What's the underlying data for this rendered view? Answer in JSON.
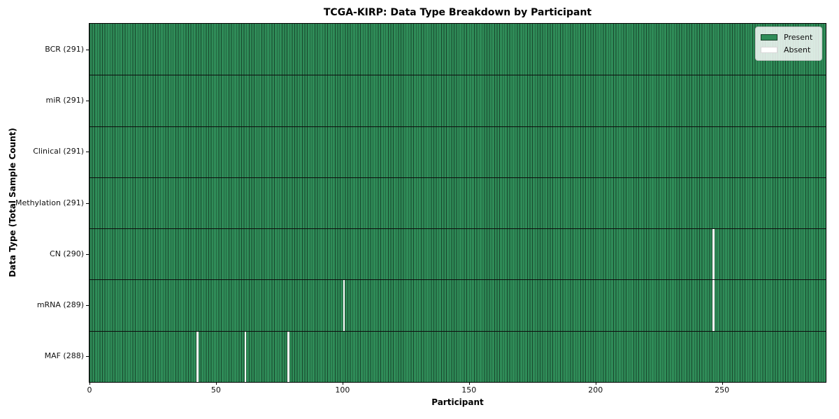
{
  "chart_data": {
    "type": "heatmap",
    "title": "TCGA-KIRP: Data Type Breakdown by Participant",
    "xlabel": "Participant",
    "ylabel": "Data Type (Total Sample Count)",
    "n_participants": 291,
    "xlim": [
      0,
      291
    ],
    "x_ticks": [
      0,
      50,
      100,
      150,
      200,
      250
    ],
    "grid": false,
    "legend_position": "upper right",
    "legend": [
      {
        "label": "Present",
        "color": "#2f8c58"
      },
      {
        "label": "Absent",
        "color": "#ffffff"
      }
    ],
    "rows": [
      {
        "data_type": "BCR",
        "total": 291,
        "label": "BCR (291)",
        "absent_participants": []
      },
      {
        "data_type": "miR",
        "total": 291,
        "label": "miR (291)",
        "absent_participants": []
      },
      {
        "data_type": "Clinical",
        "total": 291,
        "label": "Clinical (291)",
        "absent_participants": []
      },
      {
        "data_type": "Methylation",
        "total": 291,
        "label": "Methylation (291)",
        "absent_participants": []
      },
      {
        "data_type": "CN",
        "total": 290,
        "label": "CN (290)",
        "absent_participants": [
          246
        ]
      },
      {
        "data_type": "mRNA",
        "total": 289,
        "label": "mRNA (289)",
        "absent_participants": [
          100,
          246
        ]
      },
      {
        "data_type": "MAF",
        "total": 288,
        "label": "MAF (288)",
        "absent_participants": [
          42,
          61,
          78
        ]
      }
    ],
    "colors": {
      "present": "#2f8c58",
      "absent": "#ffffff",
      "cell_edge": "rgba(0,0,0,0.5)",
      "separator": "#0d0d0d",
      "spine": "#000000"
    }
  }
}
